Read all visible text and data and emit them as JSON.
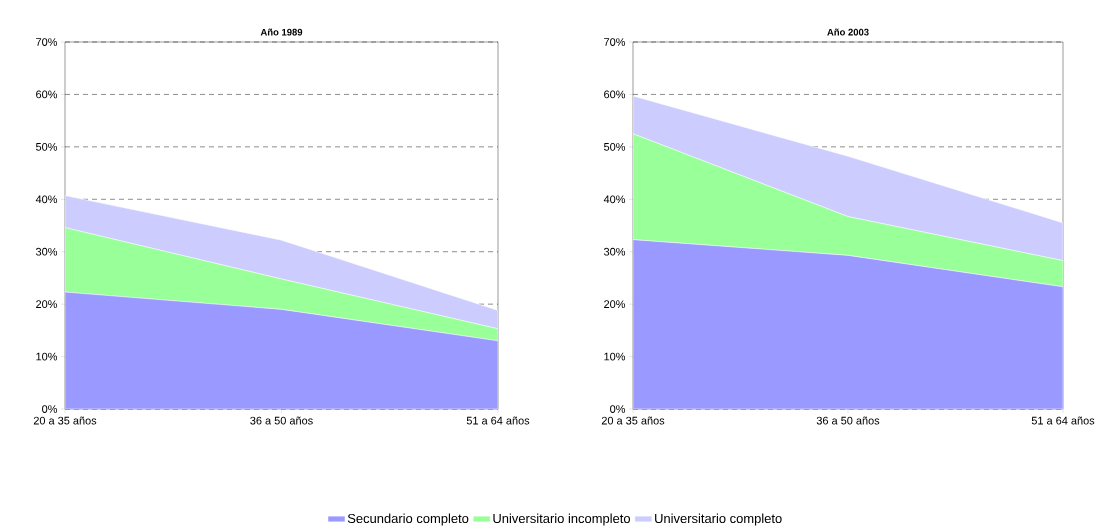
{
  "chart_data": [
    {
      "type": "area",
      "title": "Año 1989",
      "stacked": true,
      "categories": [
        "20 a 35 años",
        "36 a 50 años",
        "51 a 64 años"
      ],
      "series": [
        {
          "name": "Secundario completo",
          "color": "#9999ff",
          "values": [
            22.3,
            19.0,
            13.0
          ]
        },
        {
          "name": "Universitario incompleto",
          "color": "#99ff99",
          "values": [
            12.3,
            5.8,
            2.3
          ]
        },
        {
          "name": "Universitario completo",
          "color": "#ccccff",
          "values": [
            6.1,
            7.4,
            3.5
          ]
        }
      ],
      "ylim": [
        0,
        70
      ],
      "yticks": [
        {
          "value": 0,
          "label": "0%"
        },
        {
          "value": 10,
          "label": "10%"
        },
        {
          "value": 20,
          "label": "20%"
        },
        {
          "value": 30,
          "label": "30%"
        },
        {
          "value": 40,
          "label": "40%"
        },
        {
          "value": 50,
          "label": "50%"
        },
        {
          "value": 60,
          "label": "60%"
        },
        {
          "value": 70,
          "label": "70%"
        }
      ],
      "grid": "y",
      "line_style": "dashed",
      "legend": "bottom"
    },
    {
      "type": "area",
      "title": "Año 2003",
      "stacked": true,
      "categories": [
        "20 a 35 años",
        "36 a 50 años",
        "51 a 64 años"
      ],
      "series": [
        {
          "color": "#9999ff",
          "values": [
            32.3,
            29.3,
            23.3
          ]
        },
        {
          "color": "#99ff99",
          "values": [
            20.2,
            7.4,
            5.0
          ]
        },
        {
          "color": "#ccccff",
          "values": [
            7.2,
            11.5,
            7.2
          ]
        }
      ],
      "ylim": [
        0,
        70
      ],
      "yticks": [
        {
          "value": 0,
          "label": "0%"
        },
        {
          "value": 10,
          "label": "10%"
        },
        {
          "value": 20,
          "label": "20%"
        },
        {
          "value": 30,
          "label": "30%"
        },
        {
          "value": 40,
          "label": "40%"
        },
        {
          "value": 50,
          "label": "50%"
        },
        {
          "value": 60,
          "label": "60%"
        },
        {
          "value": 70,
          "label": "70%"
        }
      ],
      "grid": "y",
      "line_style": "dashed"
    }
  ]
}
